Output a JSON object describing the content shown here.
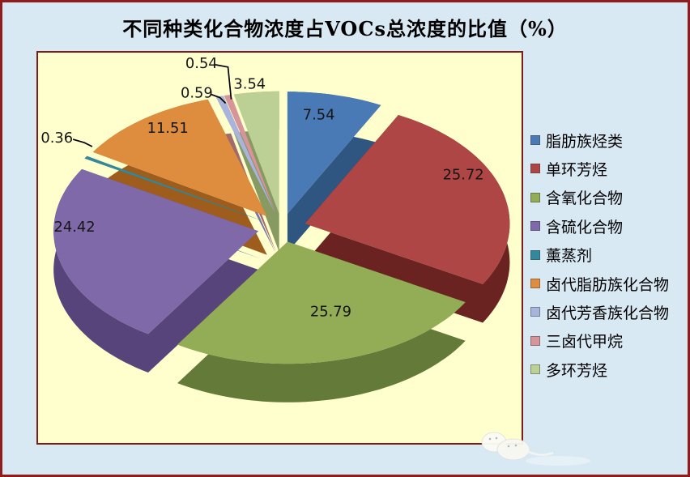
{
  "title": "不同种类化合物浓度占VOCs总浓度的比值（%）",
  "chart_data": {
    "type": "pie",
    "style": "3d-exploded",
    "title": "不同种类化合物浓度占VOCs总浓度的比值（%）",
    "unit": "%",
    "direction": "clockwise",
    "start_angle_deg": 0,
    "legend_position": "right",
    "data_labels": "value-outside-or-inside",
    "categories": [
      "脂肪族烃类",
      "单环芳烃",
      "含氧化合物",
      "含硫化合物",
      "薰蒸剂",
      "卤代脂肪族化合物",
      "卤代芳香族化合物",
      "三卤代甲烷",
      "多环芳烃"
    ],
    "values": [
      7.54,
      25.72,
      25.79,
      24.42,
      0.36,
      11.51,
      0.59,
      0.54,
      3.54
    ],
    "slices": [
      {
        "id": "aliphatic-hydrocarbons",
        "label": "脂肪族烃类",
        "value": 7.54,
        "value_label": "7.54",
        "color": "#4a7ab5",
        "wall_color": "#2e5681"
      },
      {
        "id": "monocyclic-aromatics",
        "label": "单环芳烃",
        "value": 25.72,
        "value_label": "25.72",
        "color": "#ad4644",
        "wall_color": "#6b2322"
      },
      {
        "id": "oxygenated-compounds",
        "label": "含氧化合物",
        "value": 25.79,
        "value_label": "25.79",
        "color": "#93ad57",
        "wall_color": "#647a38"
      },
      {
        "id": "sulfur-compounds",
        "label": "含硫化合物",
        "value": 24.42,
        "value_label": "24.42",
        "color": "#8069a9",
        "wall_color": "#56447b"
      },
      {
        "id": "fumigants",
        "label": "薰蒸剂",
        "value": 0.36,
        "value_label": "0.36",
        "color": "#31899b",
        "wall_color": "#1c5e6d"
      },
      {
        "id": "halogenated-aliphatics",
        "label": "卤代脂肪族化合物",
        "value": 11.51,
        "value_label": "11.51",
        "color": "#de8d3f",
        "wall_color": "#9e5d1d"
      },
      {
        "id": "halogenated-aromatics",
        "label": "卤代芳香族化合物",
        "value": 0.59,
        "value_label": "0.59",
        "color": "#a9b4dc",
        "wall_color": "#6f7aa8"
      },
      {
        "id": "trihalomethanes",
        "label": "三卤代甲烷",
        "value": 0.54,
        "value_label": "0.54",
        "color": "#d79499",
        "wall_color": "#a2696e"
      },
      {
        "id": "polycyclic-aromatics",
        "label": "多环芳烃",
        "value": 3.54,
        "value_label": "3.54",
        "color": "#bccf94",
        "wall_color": "#879a62"
      }
    ]
  },
  "colors": {
    "canvas_background": "#d9e9f4",
    "outer_border": "#8f1d1d",
    "plot_background": "#ffffcd",
    "plot_border": "#7e1b1b",
    "title_text": "#000000",
    "label_text": "#151515"
  }
}
